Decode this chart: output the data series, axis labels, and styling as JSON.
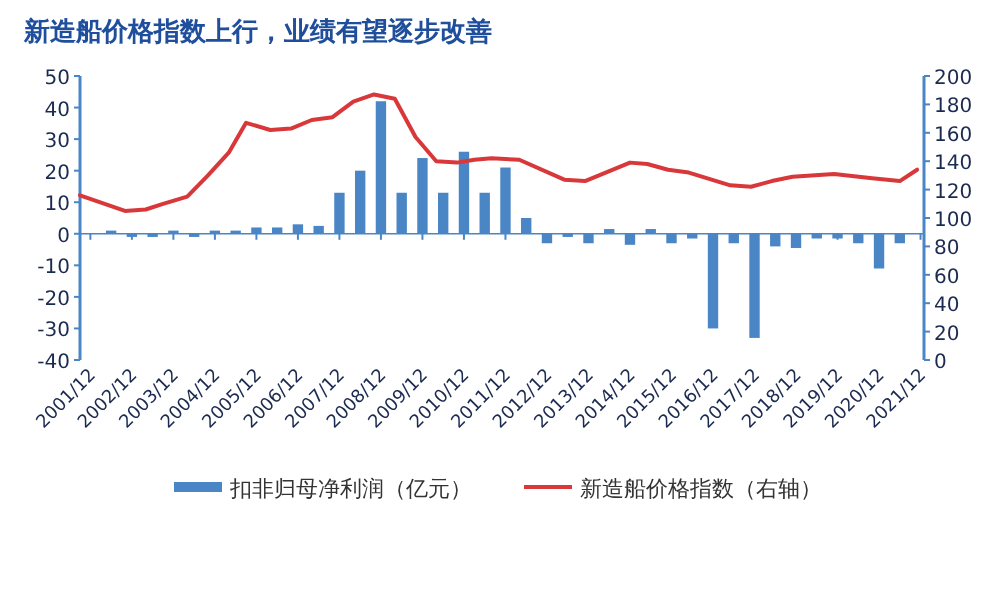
{
  "chart_data": {
    "type": "bar",
    "title": "新造船价格指数上行，业绩有望逐步改善",
    "xlim": [
      "2001-09",
      "2022-01"
    ],
    "xticks": [
      {
        "value": "2001-12",
        "label": "2001/12"
      },
      {
        "value": "2002-12",
        "label": "2002/12"
      },
      {
        "value": "2003-12",
        "label": "2003/12"
      },
      {
        "value": "2004-12",
        "label": "2004/12"
      },
      {
        "value": "2005-12",
        "label": "2005/12"
      },
      {
        "value": "2006-12",
        "label": "2006/12"
      },
      {
        "value": "2007-12",
        "label": "2007/12"
      },
      {
        "value": "2008-12",
        "label": "2008/12"
      },
      {
        "value": "2009-12",
        "label": "2009/12"
      },
      {
        "value": "2010-12",
        "label": "2010/12"
      },
      {
        "value": "2011-12",
        "label": "2011/12"
      },
      {
        "value": "2012-12",
        "label": "2012/12"
      },
      {
        "value": "2013-12",
        "label": "2013/12"
      },
      {
        "value": "2014-12",
        "label": "2014/12"
      },
      {
        "value": "2015-12",
        "label": "2015/12"
      },
      {
        "value": "2016-12",
        "label": "2016/12"
      },
      {
        "value": "2017-12",
        "label": "2017/12"
      },
      {
        "value": "2018-12",
        "label": "2018/12"
      },
      {
        "value": "2019-12",
        "label": "2019/12"
      },
      {
        "value": "2020-12",
        "label": "2020/12"
      },
      {
        "value": "2021-12",
        "label": "2021/12"
      }
    ],
    "ylim": [
      -40,
      50
    ],
    "yticks": [
      -40,
      -30,
      -20,
      -10,
      0,
      10,
      20,
      30,
      40,
      50
    ],
    "y2lim": [
      0,
      200
    ],
    "y2ticks": [
      0,
      20,
      40,
      60,
      80,
      100,
      120,
      140,
      160,
      180,
      200
    ],
    "legend": "bottom",
    "ref_lines": [
      {
        "axis": "y",
        "value": 0,
        "color": "#4a86c5"
      }
    ],
    "series": [
      {
        "name": "扣非归母净利润（亿元）",
        "color": "#4a86c5",
        "x": [
          "2002-06",
          "2002-12",
          "2003-06",
          "2003-12",
          "2004-06",
          "2004-12",
          "2005-06",
          "2005-12",
          "2006-06",
          "2006-12",
          "2007-06",
          "2007-12",
          "2008-06",
          "2008-12",
          "2009-06",
          "2009-12",
          "2010-06",
          "2010-12",
          "2011-06",
          "2011-12",
          "2012-06",
          "2012-12",
          "2013-06",
          "2013-12",
          "2014-06",
          "2014-12",
          "2015-06",
          "2015-12",
          "2016-06",
          "2016-12",
          "2017-06",
          "2017-12",
          "2018-06",
          "2018-12",
          "2019-06",
          "2019-12",
          "2020-06",
          "2020-12",
          "2021-06"
        ],
        "values": [
          1,
          -1,
          -1,
          1,
          -1,
          1,
          1,
          2,
          2,
          3,
          2.5,
          13,
          20,
          42,
          13,
          24,
          13,
          26,
          13,
          21,
          5,
          -3,
          -1,
          -3,
          1.5,
          -3.5,
          1.5,
          -3,
          -1.5,
          -30,
          -3,
          -33,
          -4,
          -4.5,
          -1.5,
          -1.5,
          -3,
          -11,
          -3
        ]
      },
      {
        "name": "新造船价格指数（右轴）",
        "type": "line",
        "axis": "y2",
        "color": "#d9383a",
        "x": [
          "2001-09",
          "2002-10",
          "2003-04",
          "2003-09",
          "2004-04",
          "2004-10",
          "2005-04",
          "2005-09",
          "2006-04",
          "2006-10",
          "2007-04",
          "2007-10",
          "2008-04",
          "2008-10",
          "2009-04",
          "2009-10",
          "2010-04",
          "2010-10",
          "2011-03",
          "2011-08",
          "2012-04",
          "2013-05",
          "2013-11",
          "2014-12",
          "2015-05",
          "2015-11",
          "2016-05",
          "2017-05",
          "2017-11",
          "2018-05",
          "2018-11",
          "2019-11",
          "2020-10",
          "2021-06",
          "2021-11"
        ],
        "values": [
          116,
          105,
          106,
          110,
          115,
          130,
          146,
          167,
          162,
          163,
          169,
          171,
          182,
          187,
          184,
          157,
          140,
          139,
          141,
          142,
          141,
          127,
          126,
          139,
          138,
          134,
          132,
          123,
          122,
          126,
          129,
          131,
          128,
          126,
          134
        ]
      }
    ]
  }
}
